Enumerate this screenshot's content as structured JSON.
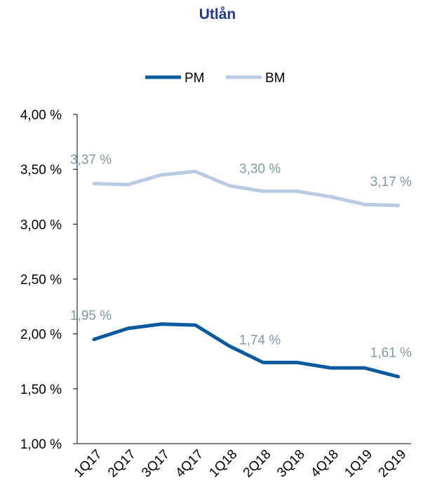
{
  "chart_data": {
    "type": "line",
    "title": "Utlån",
    "categories": [
      "1Q17",
      "2Q17",
      "3Q17",
      "4Q17",
      "1Q18",
      "2Q18",
      "3Q18",
      "4Q18",
      "1Q19",
      "2Q19"
    ],
    "series": [
      {
        "name": "PM",
        "color": "#0a5a9e",
        "values": [
          1.95,
          2.05,
          2.09,
          2.08,
          1.89,
          1.74,
          1.74,
          1.69,
          1.69,
          1.61
        ],
        "data_labels": [
          {
            "index": 0,
            "text": "1,95 %"
          },
          {
            "index": 5,
            "text": "1,74 %"
          },
          {
            "index": 9,
            "text": "1,61 %"
          }
        ]
      },
      {
        "name": "BM",
        "color": "#b9cbe3",
        "values": [
          3.37,
          3.36,
          3.45,
          3.48,
          3.35,
          3.3,
          3.3,
          3.25,
          3.18,
          3.17
        ],
        "data_labels": [
          {
            "index": 0,
            "text": "3,37 %"
          },
          {
            "index": 5,
            "text": "3,30 %"
          },
          {
            "index": 9,
            "text": "3,17 %"
          }
        ]
      }
    ],
    "ylim": [
      1.0,
      4.0
    ],
    "yticks": [
      {
        "value": 4.0,
        "label": "4,00 %"
      },
      {
        "value": 3.5,
        "label": "3,50 %"
      },
      {
        "value": 3.0,
        "label": "3,00 %"
      },
      {
        "value": 2.5,
        "label": "2,50 %"
      },
      {
        "value": 2.0,
        "label": "2,00 %"
      },
      {
        "value": 1.5,
        "label": "1,50 %"
      },
      {
        "value": 1.0,
        "label": "1,00 %"
      }
    ],
    "legend_position": "top-center",
    "grid": false
  }
}
